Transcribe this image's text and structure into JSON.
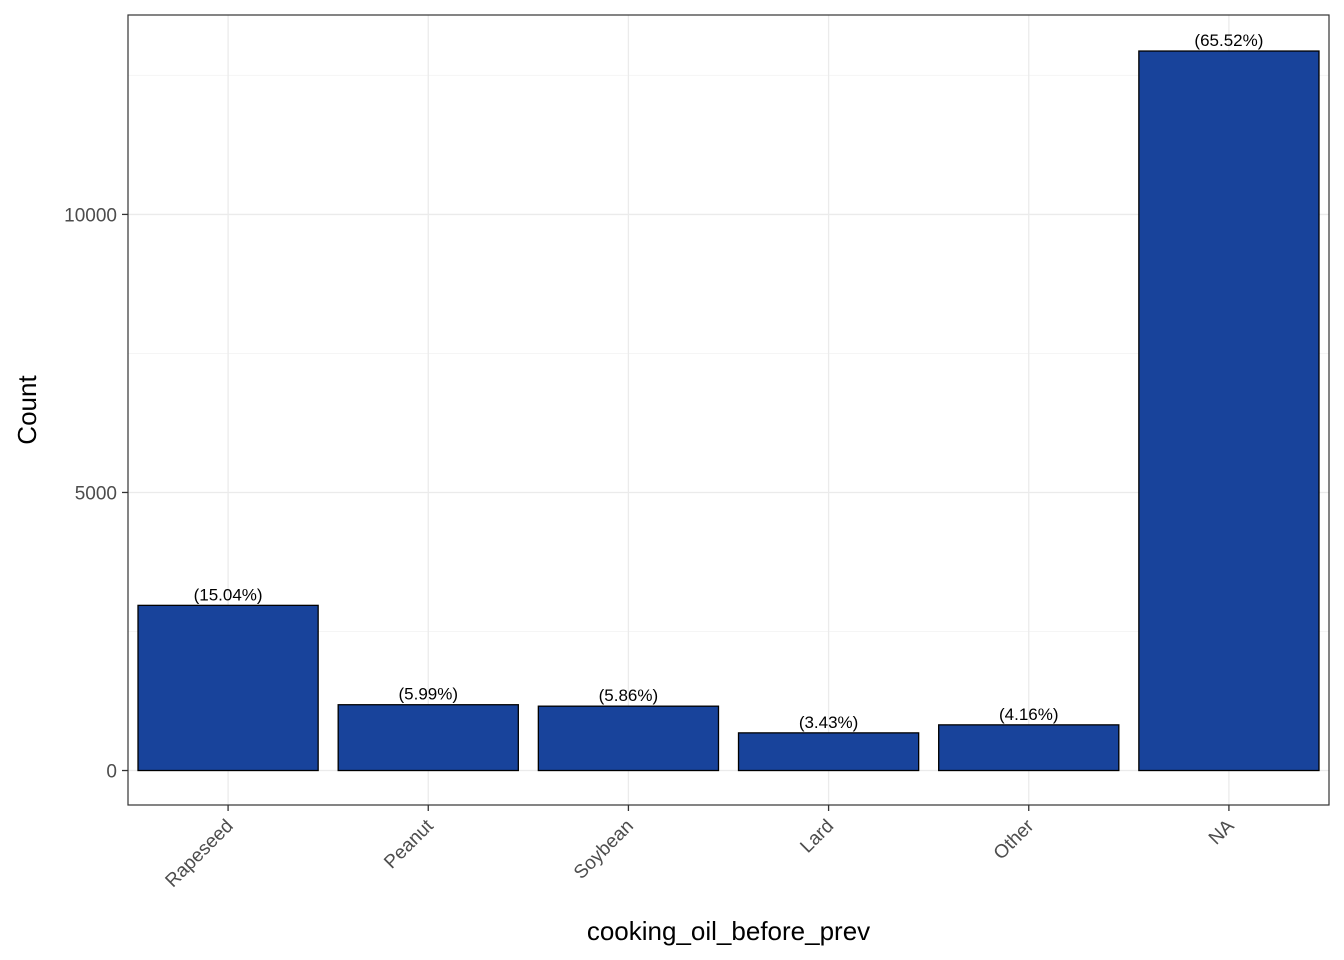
{
  "chart_data": {
    "type": "bar",
    "xlabel": "cooking_oil_before_prev",
    "ylabel": "Count",
    "categories": [
      "Rapeseed",
      "Peanut",
      "Soybean",
      "Lard",
      "Other",
      "NA"
    ],
    "values": [
      2970,
      1183,
      1157,
      677,
      821,
      12938
    ],
    "labels": [
      "(15.04%)",
      "(5.99%)",
      "(5.86%)",
      "(3.43%)",
      "(4.16%)",
      "(65.52%)"
    ],
    "yticks": [
      0,
      5000,
      10000
    ],
    "ytick_labels": [
      "0",
      "5000",
      "10000"
    ],
    "ylim": [
      -620,
      13586
    ],
    "grid": true,
    "legend": "none",
    "colors": {
      "bar_fill": "#18439B",
      "bar_stroke": "#000000",
      "grid_major": "#EBEBEB",
      "grid_minor": "#F5F5F5",
      "panel_border": "#333333"
    }
  }
}
